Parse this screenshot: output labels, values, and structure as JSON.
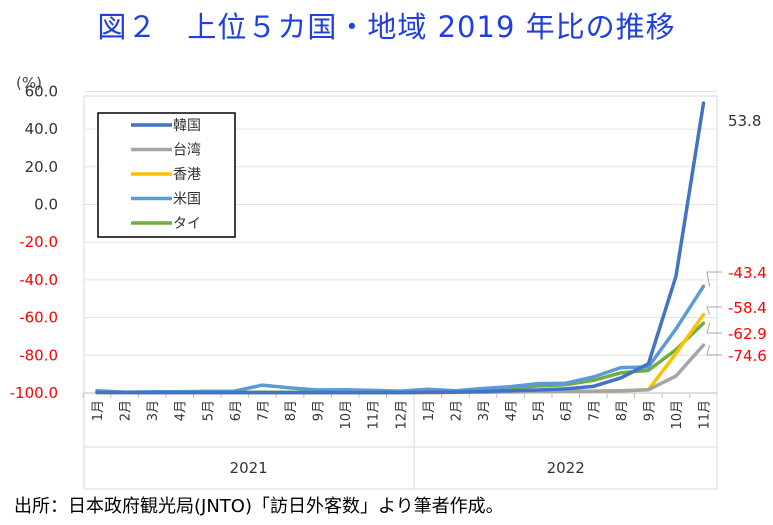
{
  "title": "図２　上位５カ国・地域 2019 年比の推移",
  "source": "出所：日本政府観光局(JNTO)「訪日外客数」より筆者作成。",
  "chart_data": {
    "type": "line",
    "unit": "(%)",
    "ylim": [
      -100,
      60
    ],
    "yticks": [
      "60.0",
      "40.0",
      "20.0",
      "0.0",
      "-20.0",
      "-40.0",
      "-60.0",
      "-80.0",
      "-100.0"
    ],
    "ytick_values": [
      60,
      40,
      20,
      0,
      -20,
      -40,
      -60,
      -80,
      -100
    ],
    "categories": [
      "1月",
      "2月",
      "3月",
      "4月",
      "5月",
      "6月",
      "7月",
      "8月",
      "9月",
      "10月",
      "11月",
      "12月",
      "1月",
      "2月",
      "3月",
      "4月",
      "5月",
      "6月",
      "7月",
      "8月",
      "9月",
      "10月",
      "11月"
    ],
    "years": [
      {
        "label": "2021",
        "start": 0,
        "end": 11
      },
      {
        "label": "2022",
        "start": 12,
        "end": 22
      }
    ],
    "legend_position": "top-left",
    "series": [
      {
        "name": "韓国",
        "color": "#4472c4",
        "values": [
          -99.7,
          -99.8,
          -99.8,
          -99.8,
          -99.8,
          -99.8,
          -99.8,
          -99.8,
          -99.8,
          -99.8,
          -99.8,
          -99.8,
          -99.6,
          -99.5,
          -99.2,
          -98.8,
          -98.4,
          -97.8,
          -96.5,
          -92.0,
          -84.5,
          -38.0,
          53.8
        ],
        "end_label": "53.8",
        "end_label_color": "#333333"
      },
      {
        "name": "台湾",
        "color": "#a5a5a5",
        "values": [
          -99.8,
          -99.9,
          -99.9,
          -99.9,
          -99.9,
          -99.9,
          -99.9,
          -99.9,
          -99.9,
          -99.9,
          -99.9,
          -99.9,
          -99.8,
          -99.7,
          -99.5,
          -99.4,
          -99.3,
          -99.2,
          -99.1,
          -98.8,
          -98.3,
          -91.0,
          -74.6
        ],
        "end_label": "-74.6",
        "end_label_color": "#ff0000"
      },
      {
        "name": "香港",
        "color": "#ffc000",
        "values": [
          -99.8,
          -99.9,
          -99.9,
          -99.9,
          -99.9,
          -99.9,
          -99.9,
          -99.9,
          -99.9,
          -99.9,
          -99.9,
          -99.9,
          -99.8,
          -99.7,
          -99.5,
          -99.4,
          -99.3,
          -99.2,
          -99.1,
          -98.8,
          -98.3,
          -79.0,
          -58.4
        ],
        "end_label": "-58.4",
        "end_label_color": "#ff0000"
      },
      {
        "name": "米国",
        "color": "#5b9bd5",
        "values": [
          -98.8,
          -99.5,
          -99.3,
          -99.3,
          -99.1,
          -99.0,
          -95.8,
          -97.3,
          -98.4,
          -98.3,
          -98.6,
          -99.0,
          -98.0,
          -98.8,
          -97.6,
          -96.6,
          -95.0,
          -94.8,
          -91.5,
          -86.5,
          -86.2,
          -66.0,
          -43.4
        ],
        "end_label": "-43.4",
        "end_label_color": "#ff0000"
      },
      {
        "name": "タイ",
        "color": "#70ad47",
        "values": [
          -99.5,
          -99.6,
          -99.6,
          -99.6,
          -99.6,
          -99.6,
          -99.6,
          -99.6,
          -99.6,
          -99.6,
          -99.6,
          -99.6,
          -99.6,
          -99.3,
          -98.2,
          -97.3,
          -96.3,
          -95.6,
          -93.3,
          -89.3,
          -88.0,
          -77.0,
          -62.9
        ],
        "end_label": "-62.9",
        "end_label_color": "#ff0000"
      }
    ]
  }
}
